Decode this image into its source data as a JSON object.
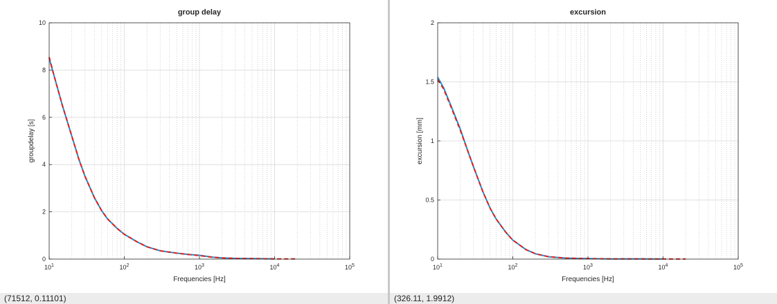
{
  "colors": {
    "series_blue": "#1f8fd0",
    "series_red": "#e0201b",
    "grid": "#d9d9d9",
    "frame": "#262626"
  },
  "status": {
    "left": "(71512, 0.11101)",
    "right": "(326.11, 1.9912)"
  },
  "chart_data": [
    {
      "type": "line",
      "title": "group delay",
      "xlabel": "Frequencies [Hz]",
      "ylabel": "groupdelay [s]",
      "xscale": "log",
      "xlim": [
        10,
        100000
      ],
      "ylim": [
        0,
        10
      ],
      "xticks": [
        {
          "value": 10,
          "base": "10",
          "exp": "1"
        },
        {
          "value": 100,
          "base": "10",
          "exp": "2"
        },
        {
          "value": 1000,
          "base": "10",
          "exp": "3"
        },
        {
          "value": 10000,
          "base": "10",
          "exp": "4"
        },
        {
          "value": 100000,
          "base": "10",
          "exp": "5"
        }
      ],
      "yticks": [
        "0",
        "2",
        "4",
        "6",
        "8",
        "10"
      ],
      "grid": true,
      "series": [
        {
          "color": "#1f8fd0",
          "style": "solid",
          "x": [
            10,
            12,
            15,
            20,
            25,
            30,
            40,
            50,
            60,
            80,
            100,
            150,
            200,
            300,
            500,
            700,
            1000,
            1500,
            2000,
            3000,
            5000,
            10000
          ],
          "y": [
            8.5,
            7.6,
            6.5,
            5.2,
            4.2,
            3.5,
            2.6,
            2.05,
            1.7,
            1.3,
            1.05,
            0.72,
            0.52,
            0.35,
            0.25,
            0.2,
            0.16,
            0.08,
            0.05,
            0.03,
            0.02,
            0.01
          ]
        },
        {
          "color": "#e0201b",
          "style": "dashed",
          "x": [
            10,
            12,
            15,
            20,
            25,
            30,
            40,
            50,
            60,
            80,
            100,
            150,
            200,
            300,
            500,
            700,
            1000,
            1500,
            2000,
            3000,
            5000,
            10000,
            20000
          ],
          "y": [
            8.55,
            7.6,
            6.5,
            5.2,
            4.2,
            3.5,
            2.6,
            2.05,
            1.7,
            1.3,
            1.05,
            0.72,
            0.52,
            0.35,
            0.25,
            0.2,
            0.15,
            0.08,
            0.05,
            0.03,
            0.02,
            0.01,
            0.005
          ]
        }
      ]
    },
    {
      "type": "line",
      "title": "excursion",
      "xlabel": "Frequencies [Hz]",
      "ylabel": "excursion [mm]",
      "xscale": "log",
      "xlim": [
        10,
        100000
      ],
      "ylim": [
        0,
        2
      ],
      "xticks": [
        {
          "value": 10,
          "base": "10",
          "exp": "1"
        },
        {
          "value": 100,
          "base": "10",
          "exp": "2"
        },
        {
          "value": 1000,
          "base": "10",
          "exp": "3"
        },
        {
          "value": 10000,
          "base": "10",
          "exp": "4"
        },
        {
          "value": 100000,
          "base": "10",
          "exp": "5"
        }
      ],
      "yticks": [
        "0",
        "0.5",
        "1",
        "1.5",
        "2"
      ],
      "grid": true,
      "series": [
        {
          "color": "#1f8fd0",
          "style": "solid",
          "x": [
            10,
            12,
            15,
            20,
            25,
            30,
            40,
            50,
            60,
            80,
            100,
            150,
            200,
            300,
            500,
            700,
            1000,
            2000,
            5000,
            10000
          ],
          "y": [
            1.54,
            1.45,
            1.3,
            1.1,
            0.92,
            0.78,
            0.57,
            0.43,
            0.34,
            0.23,
            0.16,
            0.08,
            0.045,
            0.02,
            0.009,
            0.006,
            0.004,
            0.002,
            0.001,
            0.0005
          ]
        },
        {
          "color": "#e0201b",
          "style": "dashed",
          "x": [
            10,
            12,
            15,
            20,
            25,
            30,
            40,
            50,
            60,
            80,
            100,
            150,
            200,
            300,
            500,
            700,
            1000,
            2000,
            5000,
            10000,
            20000
          ],
          "y": [
            1.52,
            1.44,
            1.29,
            1.09,
            0.92,
            0.78,
            0.57,
            0.43,
            0.34,
            0.23,
            0.16,
            0.08,
            0.045,
            0.02,
            0.009,
            0.006,
            0.004,
            0.002,
            0.001,
            0.0005,
            0.0003
          ]
        }
      ]
    }
  ]
}
